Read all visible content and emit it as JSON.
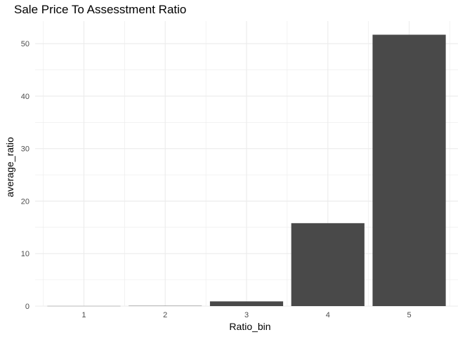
{
  "chart_data": {
    "type": "bar",
    "title": "Sale Price To Assesstment Ratio",
    "xlabel": "Ratio_bin",
    "ylabel": "average_ratio",
    "categories": [
      "1",
      "2",
      "3",
      "4",
      "5"
    ],
    "values": [
      0.02,
      0.05,
      0.9,
      15.8,
      51.7
    ],
    "yticks": [
      0,
      10,
      20,
      30,
      40,
      50
    ],
    "ylim": [
      0,
      54.3
    ],
    "grid": true,
    "bar_color": "#494949",
    "grid_color": "#ebebeb"
  }
}
